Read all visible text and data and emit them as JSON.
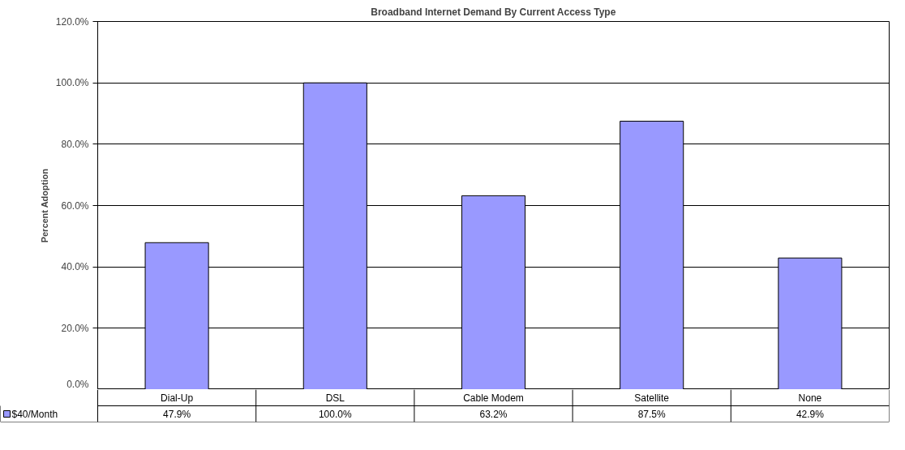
{
  "chart_data": {
    "type": "bar",
    "title": "Broadband Internet Demand By Current Access Type",
    "ylabel": "Percent Adoption",
    "categories": [
      "Dial-Up",
      "DSL",
      "Cable Modem",
      "Satellite",
      "None"
    ],
    "series": [
      {
        "name": "$40/Month",
        "color": "#9999ff",
        "values": [
          47.9,
          100.0,
          63.2,
          87.5,
          42.9
        ],
        "value_labels": [
          "47.9%",
          "100.0%",
          "63.2%",
          "87.5%",
          "42.9%"
        ]
      }
    ],
    "ylim": [
      0,
      120
    ],
    "yticks": [
      {
        "value": 0,
        "label": "0.0%"
      },
      {
        "value": 20,
        "label": "20.0%"
      },
      {
        "value": 40,
        "label": "40.0%"
      },
      {
        "value": 60,
        "label": "60.0%"
      },
      {
        "value": 80,
        "label": "80.0%"
      },
      {
        "value": 100,
        "label": "100.0%"
      },
      {
        "value": 120,
        "label": "120.0%"
      }
    ],
    "grid": "y",
    "legend": "bottom"
  }
}
